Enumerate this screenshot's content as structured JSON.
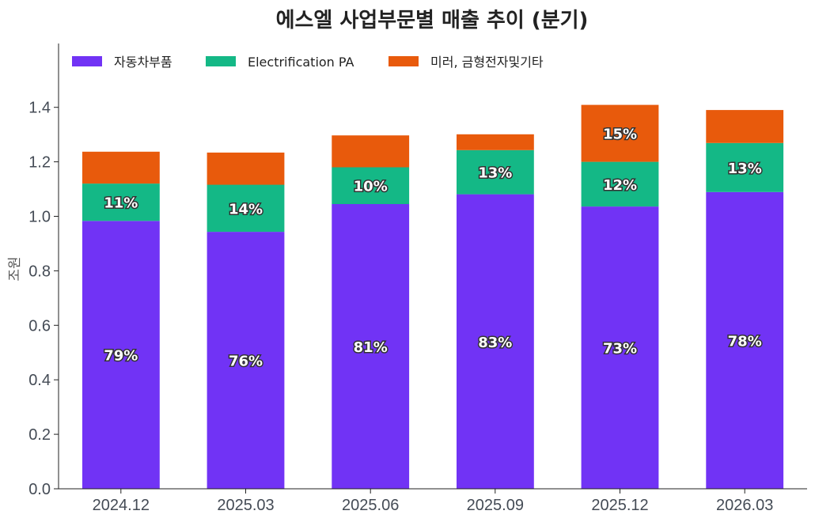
{
  "chart_data": {
    "type": "bar",
    "stacked": true,
    "title": "에스엘 사업부문별 매출 추이 (분기)",
    "ylabel": "조원",
    "xlabel": "",
    "ylim": [
      0,
      1.55
    ],
    "yticks": [
      "0.0",
      "0.2",
      "0.4",
      "0.6",
      "0.8",
      "1.0",
      "1.2",
      "1.4"
    ],
    "categories": [
      "2024.12",
      "2025.03",
      "2025.06",
      "2025.09",
      "2025.12",
      "2026.03"
    ],
    "legend_position": "top-left",
    "grid": false,
    "series": [
      {
        "name": "자동차부품",
        "color": "#7133f5",
        "values": [
          0.983,
          0.943,
          1.045,
          1.081,
          1.036,
          1.089
        ],
        "labels": [
          "79%",
          "76%",
          "81%",
          "83%",
          "73%",
          "78%"
        ]
      },
      {
        "name": "Electrification PA",
        "color": "#14b886",
        "values": [
          0.137,
          0.173,
          0.135,
          0.162,
          0.164,
          0.18
        ],
        "labels": [
          "11%",
          "14%",
          "10%",
          "13%",
          "12%",
          "13%"
        ]
      },
      {
        "name": "미러, 금형전자및기타",
        "color": "#e85a0c",
        "values": [
          0.117,
          0.118,
          0.117,
          0.058,
          0.209,
          0.121
        ],
        "labels": [
          "",
          "",
          "",
          "",
          "15%",
          ""
        ]
      }
    ]
  }
}
